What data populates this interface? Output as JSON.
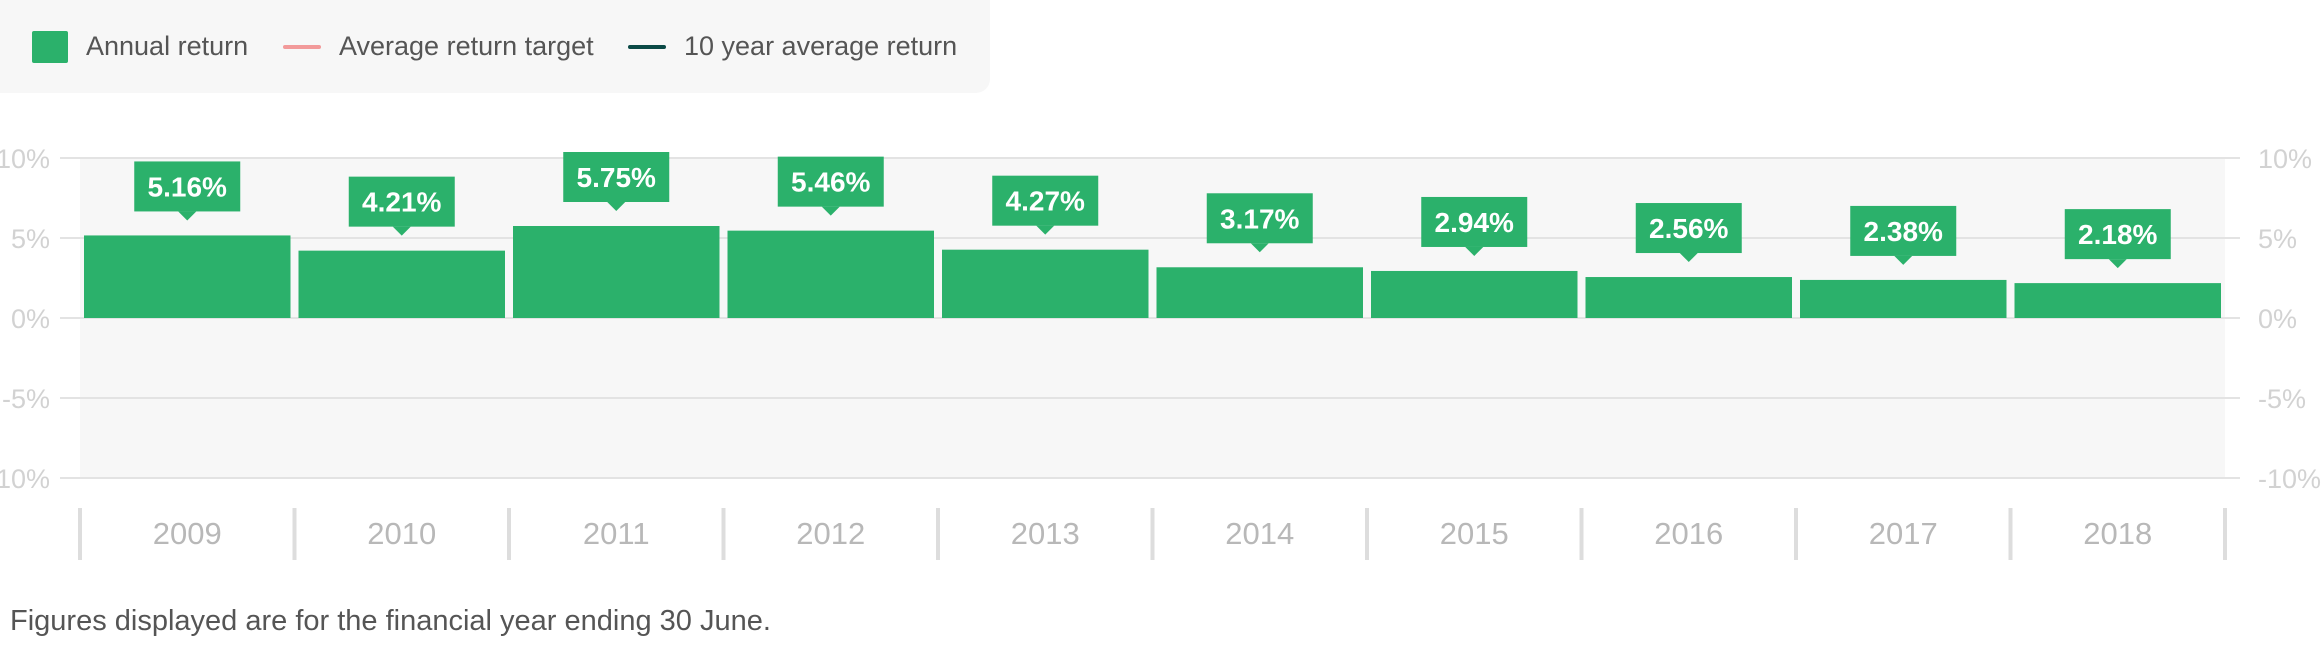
{
  "legend": {
    "items": [
      {
        "label": "Annual return",
        "kind": "swatch",
        "color": "#2bb16b"
      },
      {
        "label": "Average return target",
        "kind": "line",
        "color": "#f29a9a"
      },
      {
        "label": "10 year average return",
        "kind": "line",
        "color": "#0b4a46"
      }
    ]
  },
  "footnote": "Figures displayed are for the financial year ending 30 June.",
  "chart_data": {
    "type": "bar",
    "categories": [
      "2009",
      "2010",
      "2011",
      "2012",
      "2013",
      "2014",
      "2015",
      "2016",
      "2017",
      "2018"
    ],
    "series": [
      {
        "name": "Annual return",
        "values": [
          5.16,
          4.21,
          5.75,
          5.46,
          4.27,
          3.17,
          2.94,
          2.56,
          2.38,
          2.18
        ],
        "color": "#2bb16b"
      }
    ],
    "data_labels": [
      "5.16%",
      "4.21%",
      "5.75%",
      "5.46%",
      "4.27%",
      "3.17%",
      "2.94%",
      "2.56%",
      "2.38%",
      "2.18%"
    ],
    "ylim": [
      -10,
      10
    ],
    "yticks": [
      10,
      5,
      0,
      -5,
      -10
    ],
    "ytick_labels": [
      "10%",
      "5%",
      "0%",
      "-5%",
      "-10%"
    ],
    "y_axis_sides": [
      "left",
      "right"
    ],
    "grid": true,
    "legend_position": "top-left",
    "plot_background": "#f7f7f7",
    "label_background": "#2bb16b",
    "label_text_color": "#ffffff"
  }
}
